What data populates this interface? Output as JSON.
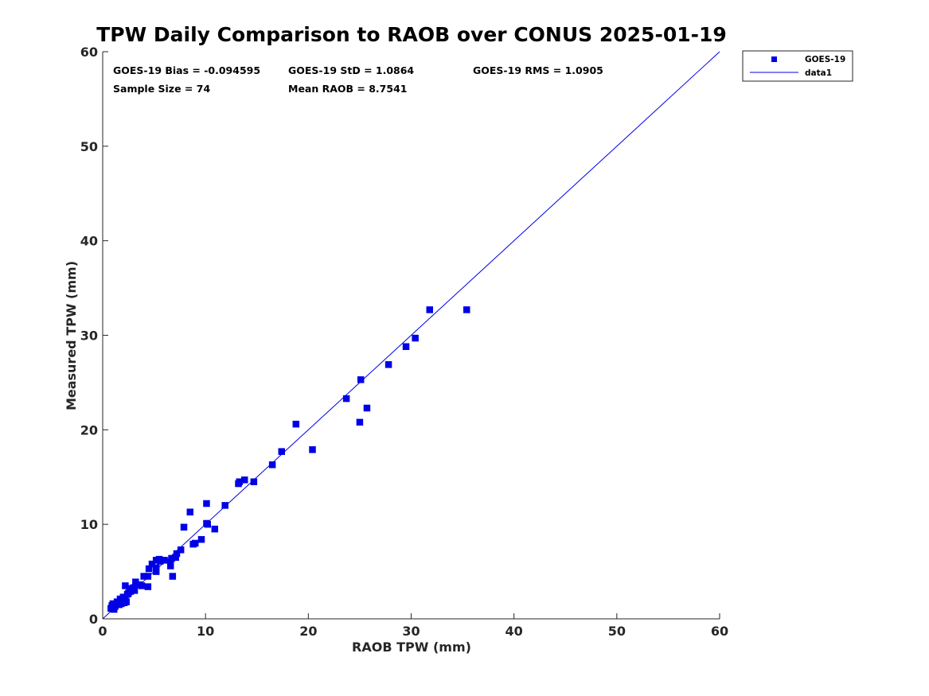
{
  "chart_data": {
    "type": "scatter",
    "title": "TPW Daily Comparison to RAOB over CONUS 2025-01-19",
    "xlabel": "RAOB TPW (mm)",
    "ylabel": "Measured TPW (mm)",
    "xlim": [
      0,
      60
    ],
    "ylim": [
      0,
      60
    ],
    "xticks": [
      "0",
      "10",
      "20",
      "30",
      "40",
      "50",
      "60"
    ],
    "yticks": [
      "0",
      "10",
      "20",
      "30",
      "40",
      "50",
      "60"
    ],
    "grid": false,
    "legend_position": "outside-top-right",
    "stats": {
      "bias": "GOES-19 Bias = -0.094595",
      "std": "GOES-19 StD = 1.0864",
      "rms": "GOES-19 RMS = 1.0905",
      "sample_size": "Sample Size = 74",
      "mean_raob": "Mean RAOB = 8.7541"
    },
    "series": [
      {
        "name": "GOES-19",
        "kind": "scatter",
        "marker": "square",
        "color": "#0000e6",
        "x": [
          35.4,
          31.8,
          30.4,
          29.5,
          27.8,
          25.7,
          25.0,
          25.1,
          23.7,
          20.4,
          18.8,
          17.4,
          16.5,
          14.7,
          13.8,
          13.2,
          13.3,
          11.9,
          10.9,
          10.1,
          10.2,
          10.1,
          9.6,
          8.8,
          8.5,
          7.9,
          7.6,
          7.2,
          7.1,
          6.8,
          6.6,
          6.6,
          6.7,
          6.0,
          5.6,
          5.2,
          5.2,
          5.2,
          4.5,
          4.4,
          4.4,
          4.0,
          3.8,
          3.6,
          3.2,
          3.1,
          3.0,
          2.7,
          2.7,
          2.5,
          2.4,
          2.3,
          2.2,
          2.2,
          2.1,
          1.9,
          1.8,
          1.7,
          1.6,
          1.5,
          1.3,
          1.2,
          1.1,
          1.0,
          1.0,
          0.9,
          2.6,
          2.0,
          3.4,
          1.4,
          0.8,
          4.8,
          5.5,
          9.0
        ],
        "y": [
          32.7,
          32.7,
          29.7,
          28.8,
          26.9,
          22.3,
          20.8,
          25.3,
          23.3,
          17.9,
          20.6,
          17.7,
          16.3,
          14.5,
          14.7,
          14.3,
          14.5,
          12.0,
          9.5,
          12.2,
          10.0,
          10.1,
          8.4,
          7.9,
          11.3,
          9.7,
          7.3,
          6.9,
          6.5,
          4.5,
          5.6,
          6.0,
          6.4,
          6.2,
          6.1,
          5.0,
          5.4,
          6.2,
          5.3,
          4.5,
          3.4,
          4.5,
          3.5,
          3.6,
          3.9,
          3.0,
          3.3,
          2.9,
          3.2,
          2.7,
          2.6,
          1.8,
          3.5,
          2.2,
          1.7,
          2.0,
          1.6,
          2.1,
          1.5,
          1.5,
          1.5,
          1.3,
          1.0,
          1.6,
          1.2,
          1.4,
          3.0,
          2.3,
          3.6,
          1.8,
          1.1,
          5.8,
          6.3,
          8.0
        ]
      },
      {
        "name": "data1",
        "kind": "line",
        "color": "#0000e6",
        "x": [
          0,
          60
        ],
        "y": [
          0,
          60
        ]
      }
    ]
  }
}
